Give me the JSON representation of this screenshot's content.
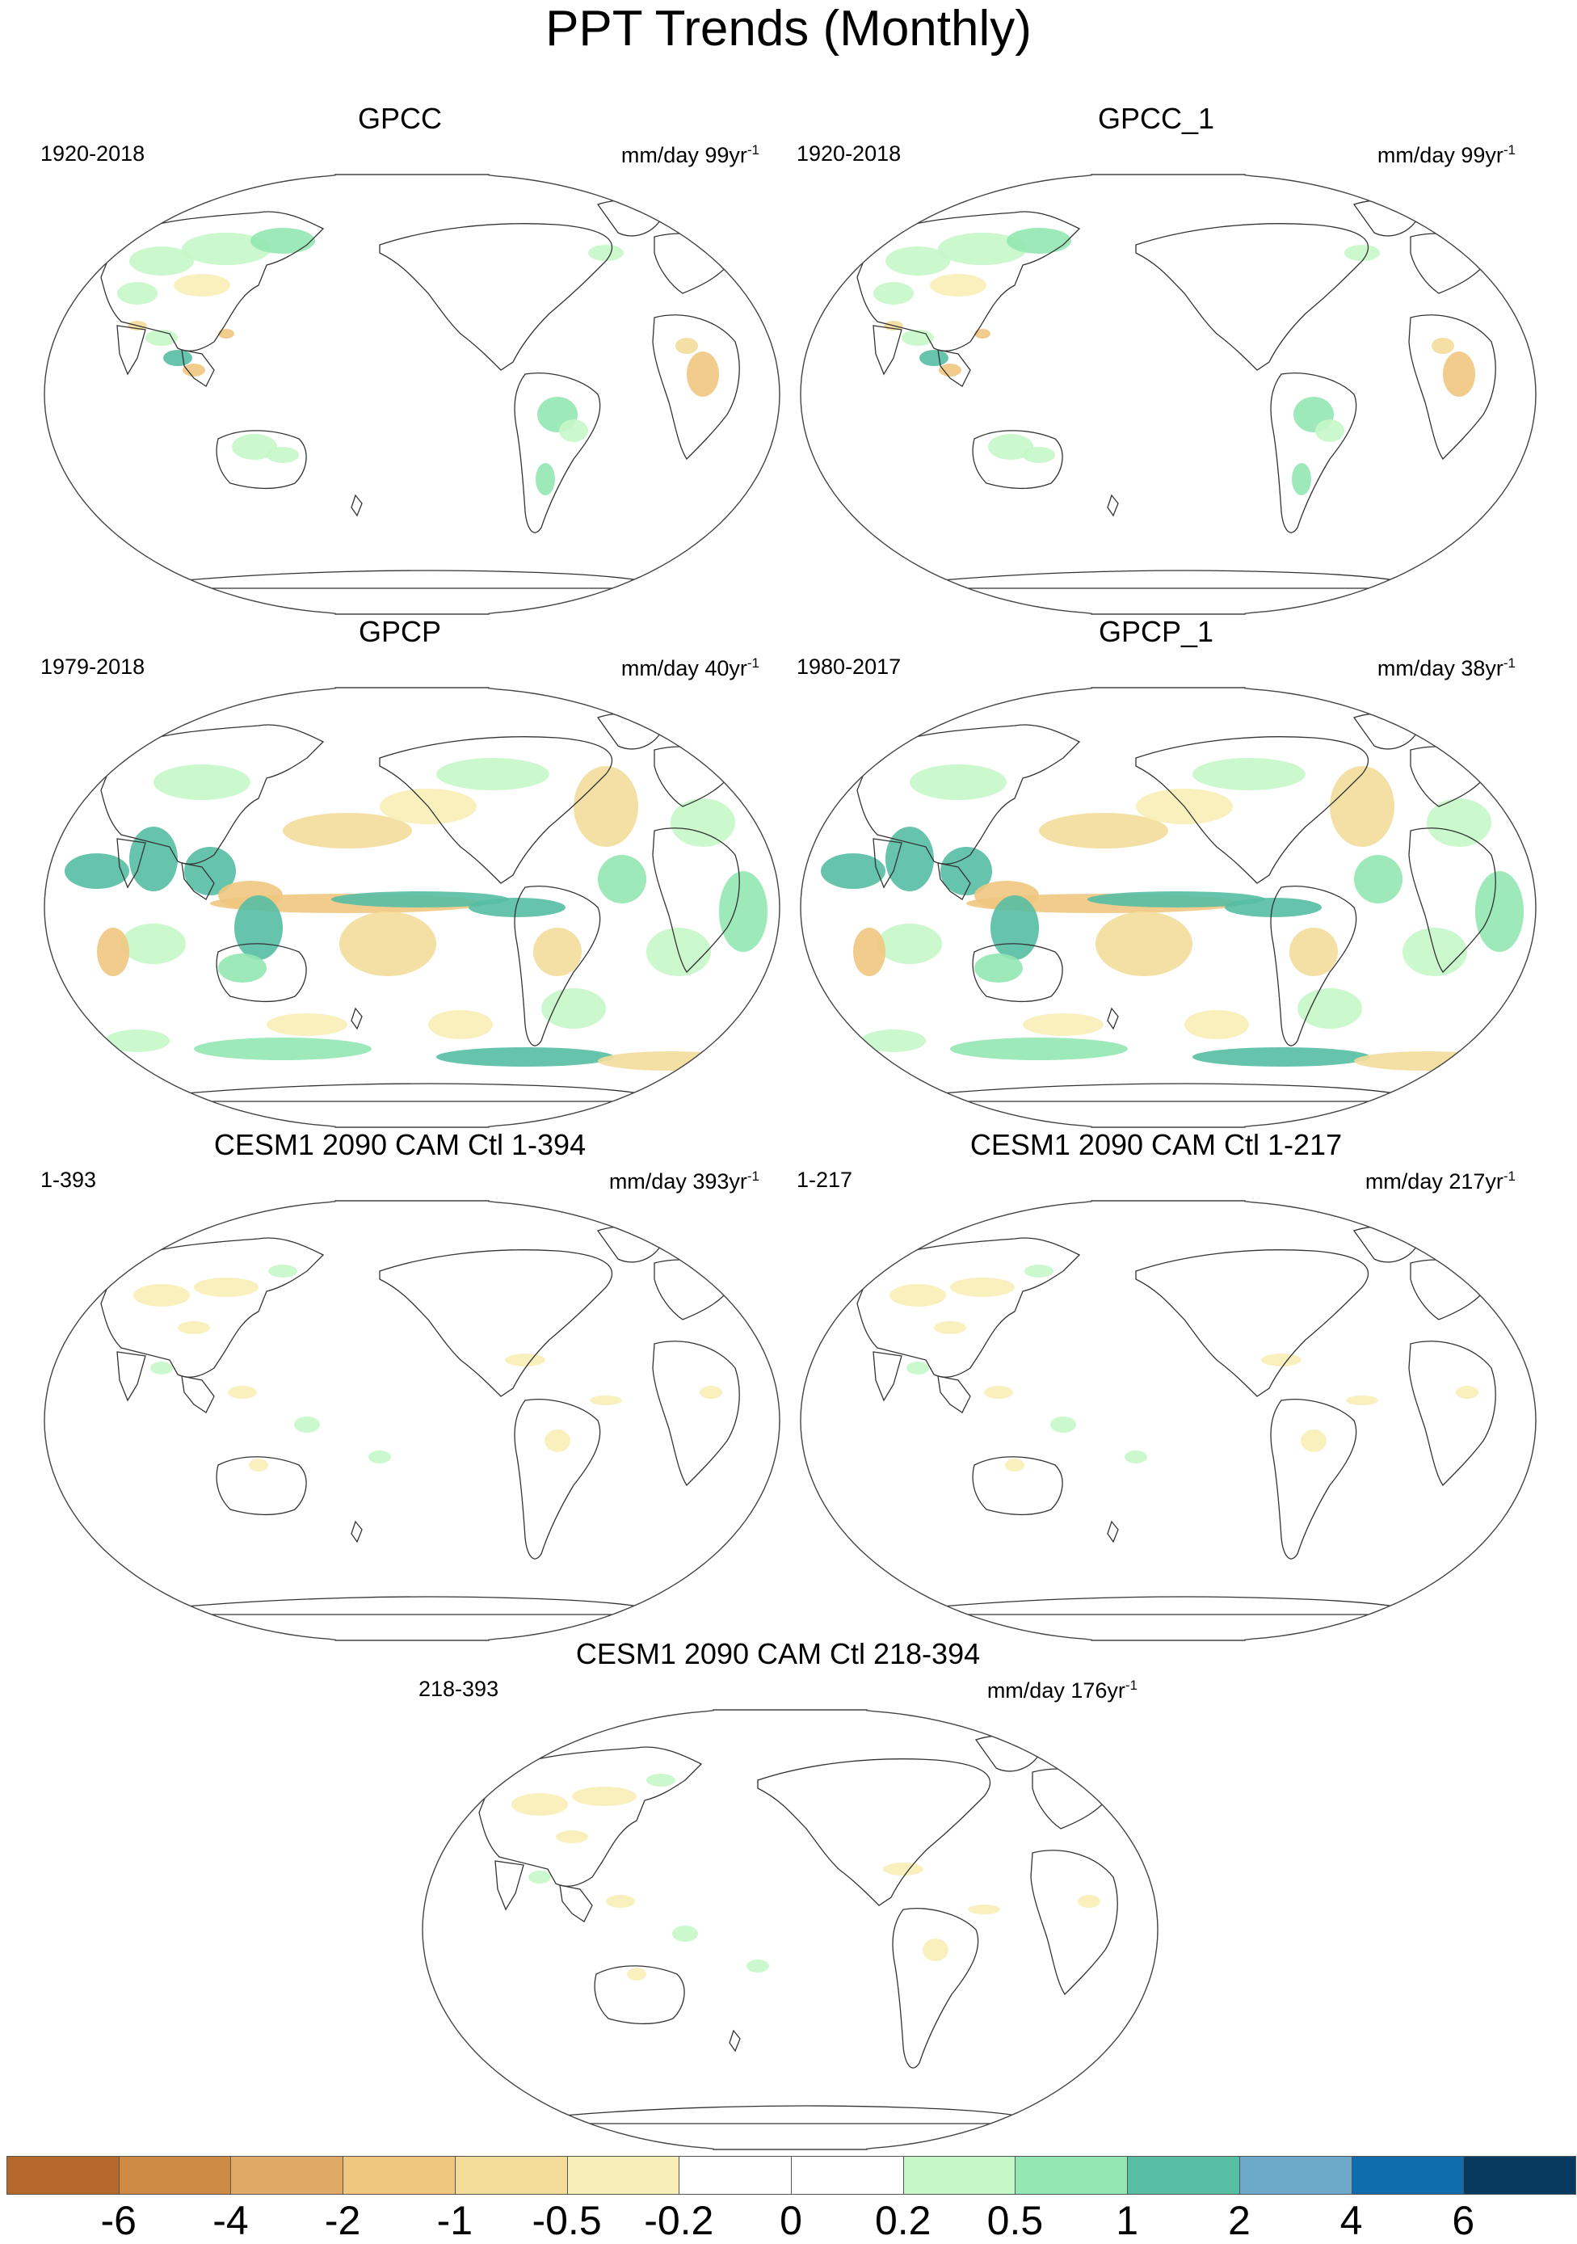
{
  "title": "PPT Trends (Monthly)",
  "panels": [
    {
      "title": "GPCC",
      "period": "1920-2018",
      "units": "mm/day 99yr",
      "units_sup": "-1",
      "pattern": "land-sparse"
    },
    {
      "title": "GPCC_1",
      "period": "1920-2018",
      "units": "mm/day 99yr",
      "units_sup": "-1",
      "pattern": "land-sparse"
    },
    {
      "title": "GPCP",
      "period": "1979-2018",
      "units": "mm/day 40yr",
      "units_sup": "-1",
      "pattern": "global-dense"
    },
    {
      "title": "GPCP_1",
      "period": "1980-2017",
      "units": "mm/day 38yr",
      "units_sup": "-1",
      "pattern": "global-dense"
    },
    {
      "title": "CESM1 2090 CAM Ctl 1-394",
      "period": "1-393",
      "units": "mm/day 393yr",
      "units_sup": "-1",
      "pattern": "weak"
    },
    {
      "title": "CESM1 2090 CAM Ctl 1-217",
      "period": "1-217",
      "units": "mm/day 217yr",
      "units_sup": "-1",
      "pattern": "weak"
    },
    {
      "title": "CESM1 2090 CAM Ctl 218-394",
      "period": "218-393",
      "units": "mm/day 176yr",
      "units_sup": "-1",
      "pattern": "weak"
    }
  ],
  "colorbar": {
    "colors": [
      "#b5682a",
      "#cd8a45",
      "#e0a966",
      "#f0c77f",
      "#f3dc9a",
      "#f8eeb7",
      "#ffffff",
      "#ffffff",
      "#c5f7c8",
      "#94e7b3",
      "#57bea3",
      "#6da9c9",
      "#0f6dae",
      "#063a5e"
    ],
    "labels": [
      "-6",
      "-4",
      "-2",
      "-1",
      "-0.5",
      "-0.2",
      "0",
      "0.2",
      "0.5",
      "1",
      "2",
      "4",
      "6"
    ]
  }
}
